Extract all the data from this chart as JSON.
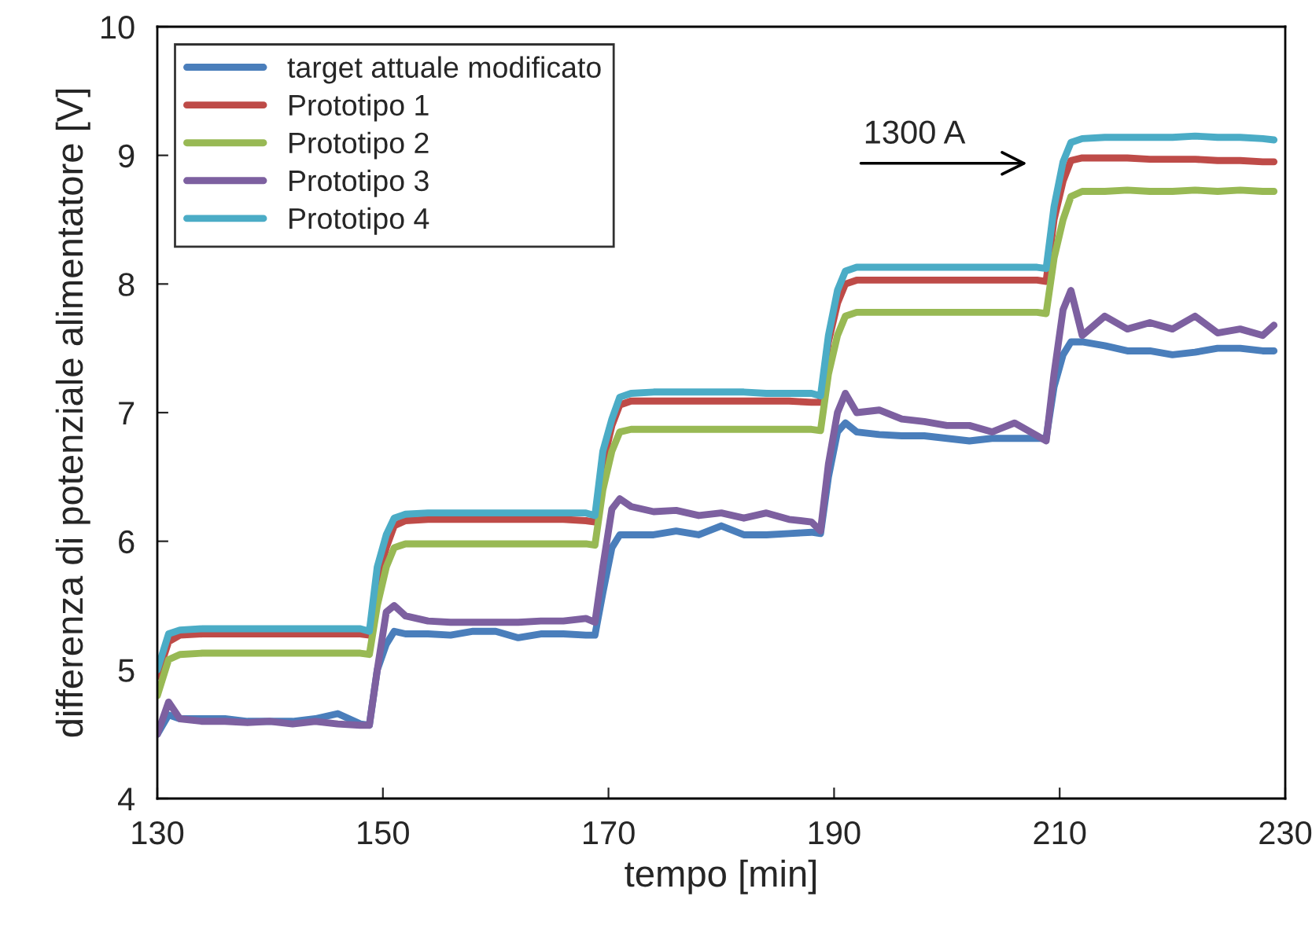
{
  "chart_data": {
    "type": "line",
    "xlabel": "tempo [min]",
    "ylabel": "differenza di potenziale alimentatore [V]",
    "x": [
      130,
      131,
      132,
      134,
      136,
      138,
      140,
      142,
      144,
      146,
      148,
      148.8,
      149.5,
      150.3,
      151,
      152,
      154,
      156,
      158,
      160,
      162,
      164,
      166,
      168,
      168.8,
      169.5,
      170.3,
      171,
      172,
      174,
      176,
      178,
      180,
      182,
      184,
      186,
      188,
      188.8,
      189.5,
      190.3,
      191,
      192,
      194,
      196,
      198,
      200,
      202,
      204,
      206,
      208,
      208.8,
      209.5,
      210.3,
      211,
      212,
      214,
      216,
      218,
      220,
      222,
      224,
      226,
      228,
      229
    ],
    "series": [
      {
        "name": "target attuale modificato",
        "color": "#4a7ebb",
        "values": [
          4.5,
          4.65,
          4.62,
          4.62,
          4.62,
          4.6,
          4.6,
          4.6,
          4.62,
          4.66,
          4.58,
          4.57,
          5.0,
          5.2,
          5.3,
          5.28,
          5.28,
          5.27,
          5.3,
          5.3,
          5.25,
          5.28,
          5.28,
          5.27,
          5.27,
          5.6,
          5.95,
          6.05,
          6.05,
          6.05,
          6.08,
          6.05,
          6.12,
          6.05,
          6.05,
          6.06,
          6.07,
          6.06,
          6.5,
          6.85,
          6.92,
          6.85,
          6.83,
          6.82,
          6.82,
          6.8,
          6.78,
          6.8,
          6.8,
          6.8,
          6.8,
          7.2,
          7.45,
          7.55,
          7.55,
          7.52,
          7.48,
          7.48,
          7.45,
          7.47,
          7.5,
          7.5,
          7.48,
          7.48
        ]
      },
      {
        "name": "Prototipo 1",
        "color": "#be4b48",
        "values": [
          4.95,
          5.22,
          5.27,
          5.28,
          5.28,
          5.28,
          5.28,
          5.28,
          5.28,
          5.28,
          5.28,
          5.27,
          5.7,
          5.95,
          6.12,
          6.16,
          6.17,
          6.17,
          6.17,
          6.17,
          6.17,
          6.17,
          6.17,
          6.16,
          6.15,
          6.6,
          6.9,
          7.06,
          7.09,
          7.09,
          7.09,
          7.09,
          7.09,
          7.09,
          7.09,
          7.09,
          7.08,
          7.08,
          7.55,
          7.85,
          8.0,
          8.03,
          8.03,
          8.03,
          8.03,
          8.03,
          8.03,
          8.03,
          8.03,
          8.03,
          8.02,
          8.5,
          8.8,
          8.96,
          8.98,
          8.98,
          8.98,
          8.97,
          8.97,
          8.97,
          8.96,
          8.96,
          8.95,
          8.95
        ]
      },
      {
        "name": "Prototipo 2",
        "color": "#98b954",
        "values": [
          4.8,
          5.08,
          5.12,
          5.13,
          5.13,
          5.13,
          5.13,
          5.13,
          5.13,
          5.13,
          5.13,
          5.12,
          5.5,
          5.8,
          5.95,
          5.98,
          5.98,
          5.98,
          5.98,
          5.98,
          5.98,
          5.98,
          5.98,
          5.98,
          5.97,
          6.4,
          6.7,
          6.85,
          6.87,
          6.87,
          6.87,
          6.87,
          6.87,
          6.87,
          6.87,
          6.87,
          6.87,
          6.86,
          7.3,
          7.6,
          7.75,
          7.78,
          7.78,
          7.78,
          7.78,
          7.78,
          7.78,
          7.78,
          7.78,
          7.78,
          7.77,
          8.2,
          8.5,
          8.68,
          8.72,
          8.72,
          8.73,
          8.72,
          8.72,
          8.73,
          8.72,
          8.73,
          8.72,
          8.72
        ]
      },
      {
        "name": "Prototipo 3",
        "color": "#7d60a0",
        "values": [
          4.5,
          4.75,
          4.62,
          4.6,
          4.6,
          4.59,
          4.6,
          4.58,
          4.6,
          4.58,
          4.57,
          4.57,
          5.0,
          5.45,
          5.5,
          5.42,
          5.38,
          5.37,
          5.37,
          5.37,
          5.37,
          5.38,
          5.38,
          5.4,
          5.37,
          5.8,
          6.25,
          6.33,
          6.27,
          6.23,
          6.24,
          6.2,
          6.22,
          6.18,
          6.22,
          6.17,
          6.15,
          6.08,
          6.6,
          7.0,
          7.15,
          7.0,
          7.02,
          6.95,
          6.93,
          6.9,
          6.9,
          6.85,
          6.92,
          6.82,
          6.78,
          7.3,
          7.8,
          7.95,
          7.6,
          7.75,
          7.65,
          7.7,
          7.65,
          7.75,
          7.62,
          7.65,
          7.6,
          7.68
        ]
      },
      {
        "name": "Prototipo 4",
        "color": "#4bacc6",
        "values": [
          5.0,
          5.28,
          5.31,
          5.32,
          5.32,
          5.32,
          5.32,
          5.32,
          5.32,
          5.32,
          5.32,
          5.3,
          5.8,
          6.05,
          6.18,
          6.21,
          6.22,
          6.22,
          6.22,
          6.22,
          6.22,
          6.22,
          6.22,
          6.22,
          6.2,
          6.7,
          6.95,
          7.12,
          7.15,
          7.16,
          7.16,
          7.16,
          7.16,
          7.16,
          7.15,
          7.15,
          7.15,
          7.13,
          7.6,
          7.95,
          8.1,
          8.13,
          8.13,
          8.13,
          8.13,
          8.13,
          8.13,
          8.13,
          8.13,
          8.13,
          8.12,
          8.6,
          8.95,
          9.1,
          9.13,
          9.14,
          9.14,
          9.14,
          9.14,
          9.15,
          9.14,
          9.14,
          9.13,
          9.12
        ]
      }
    ],
    "annotations": [
      "1300 A"
    ],
    "xlim": [
      130,
      230
    ],
    "xticks": [
      130,
      150,
      170,
      190,
      210,
      230
    ],
    "ylim": [
      4,
      10
    ],
    "yticks": [
      4,
      5,
      6,
      7,
      8,
      9,
      10
    ],
    "legend": "top left",
    "grid": false,
    "marker": "none",
    "line_style": "solid"
  }
}
